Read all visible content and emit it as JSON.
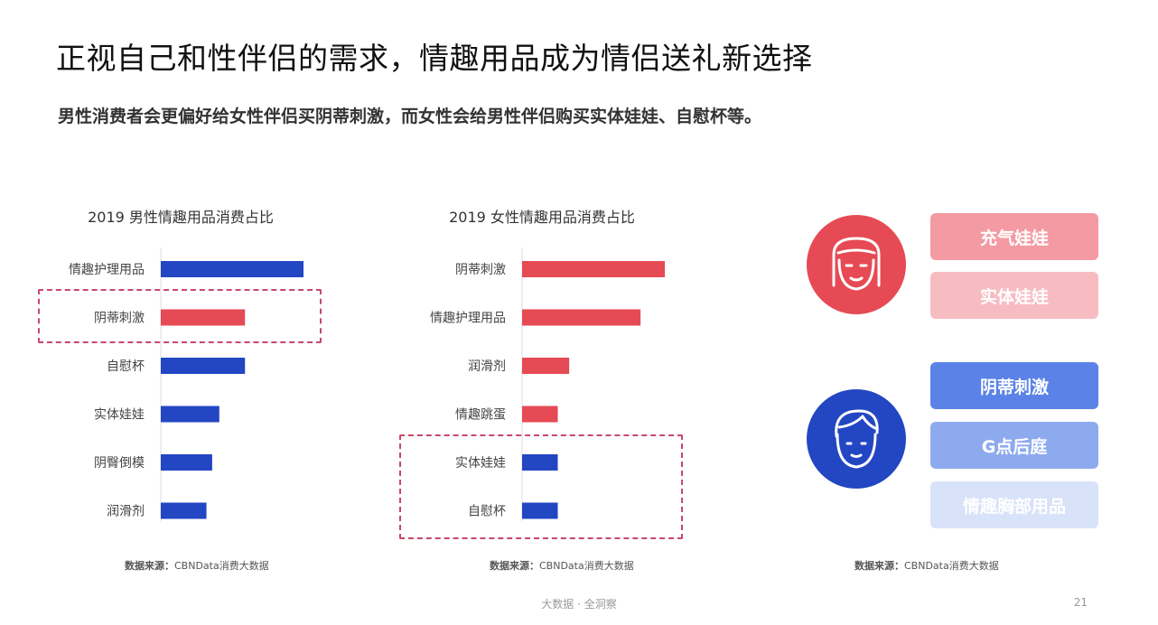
{
  "title": "正视自己和性伴侣的需求，情趣用品成为情侣送礼新选择",
  "subtitle": "男性消费者会更偏好给女性伴侣买阴蒂刺激，而女性会给男性伴侣购买实体娃娃、自慰杯等。",
  "colors": {
    "blue": "#2346c2",
    "red": "#e64a55",
    "dashed": "#c8486a"
  },
  "chart_data": [
    {
      "type": "bar",
      "orientation": "horizontal",
      "title": "2019 男性情趣用品消费占比",
      "categories": [
        "情趣护理用品",
        "阴蒂刺激",
        "自慰杯",
        "实体娃娃",
        "阴臀倒模",
        "润滑剂"
      ],
      "values": [
        100,
        59,
        59,
        41,
        36,
        32
      ],
      "colors": [
        "#2346c2",
        "#e64a55",
        "#2346c2",
        "#2346c2",
        "#2346c2",
        "#2346c2"
      ],
      "highlight": [
        "阴蒂刺激"
      ]
    },
    {
      "type": "bar",
      "orientation": "horizontal",
      "title": "2019 女性情趣用品消费占比",
      "categories": [
        "阴蒂刺激",
        "情趣护理用品",
        "润滑剂",
        "情趣跳蛋",
        "实体娃娃",
        "自慰杯"
      ],
      "values": [
        100,
        83,
        33,
        25,
        25,
        25
      ],
      "colors": [
        "#e64a55",
        "#e64a55",
        "#e64a55",
        "#e64a55",
        "#2346c2",
        "#2346c2"
      ],
      "highlight": [
        "实体娃娃",
        "自慰杯"
      ]
    }
  ],
  "female_tags": [
    "充气娃娃",
    "实体娃娃"
  ],
  "male_tags": [
    "阴蒂刺激",
    "G点后庭",
    "情趣胸部用品"
  ],
  "source": {
    "label": "数据来源：",
    "text": "CBNData消费大数据"
  },
  "footer": "大数据 · 全洞察",
  "page_number": "21"
}
